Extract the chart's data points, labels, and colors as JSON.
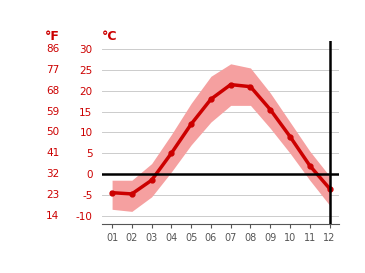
{
  "months": [
    1,
    2,
    3,
    4,
    5,
    6,
    7,
    8,
    9,
    10,
    11,
    12
  ],
  "avg_temp": [
    -4.5,
    -4.8,
    -1.5,
    5.0,
    12.0,
    18.0,
    21.5,
    21.0,
    15.5,
    9.0,
    2.0,
    -3.5
  ],
  "max_temp": [
    -1.5,
    -1.5,
    2.5,
    9.5,
    17.0,
    23.5,
    26.5,
    25.5,
    19.5,
    12.5,
    5.5,
    -0.5
  ],
  "min_temp": [
    -8.5,
    -9.0,
    -5.5,
    0.5,
    7.0,
    12.5,
    16.5,
    16.5,
    11.0,
    5.0,
    -1.5,
    -7.5
  ],
  "ylim": [
    -12,
    32
  ],
  "yticks_c": [
    -10,
    -5,
    0,
    5,
    10,
    15,
    20,
    25,
    30
  ],
  "yticks_f": [
    14,
    23,
    32,
    41,
    50,
    59,
    68,
    77,
    86
  ],
  "line_color": "#cc0000",
  "band_color": "#f5a0a0",
  "zero_line_color": "#000000",
  "axis_color": "#000000",
  "label_color": "#cc0000",
  "tick_label_color": "#555555",
  "grid_color": "#cccccc",
  "bg_color": "#ffffff"
}
